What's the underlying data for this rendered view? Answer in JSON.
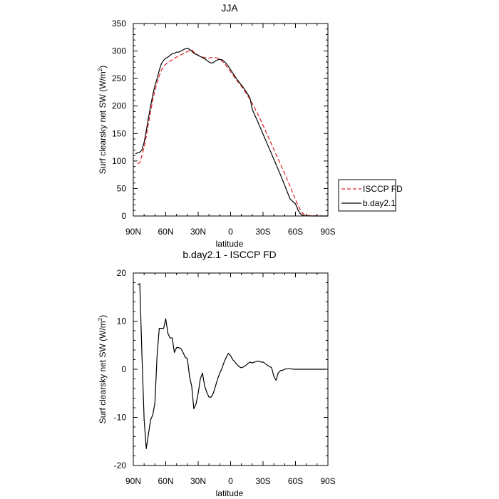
{
  "chart_data": [
    {
      "type": "line",
      "title": "JJA",
      "xlabel": "latitude",
      "ylabel_main": "Surf clearsky net SW (W/m",
      "ylabel_sup": "2",
      "ylabel_tail": ")",
      "xlim": [
        90,
        -90
      ],
      "ylim": [
        0,
        350
      ],
      "x_ticks": [
        90,
        60,
        30,
        0,
        -30,
        -60,
        -90
      ],
      "x_tick_labels": [
        "90N",
        "60N",
        "30N",
        "0",
        "30S",
        "60S",
        "90S"
      ],
      "y_ticks": [
        0,
        50,
        100,
        150,
        200,
        250,
        300,
        350
      ],
      "y_tick_labels": [
        "0",
        "50",
        "100",
        "150",
        "200",
        "250",
        "300",
        "350"
      ],
      "series": [
        {
          "name": "ISCCP FD",
          "color": "#e02020",
          "dash": "dashed",
          "x": [
            86,
            84,
            82,
            80,
            78,
            76,
            74,
            72,
            70,
            68,
            66,
            64,
            62,
            60,
            58,
            56,
            54,
            52,
            50,
            48,
            46,
            44,
            42,
            40,
            38,
            36,
            34,
            32,
            30,
            28,
            26,
            24,
            22,
            20,
            18,
            16,
            14,
            12,
            10,
            8,
            6,
            4,
            2,
            0,
            -2,
            -4,
            -6,
            -8,
            -10,
            -12,
            -14,
            -16,
            -18,
            -20,
            -25,
            -30,
            -35,
            -40,
            -45,
            -50,
            -55,
            -60,
            -62,
            -64,
            -66,
            -68,
            -70,
            -75,
            -80,
            -85,
            -90
          ],
          "y": [
            95,
            97,
            110,
            125,
            145,
            168,
            190,
            210,
            228,
            242,
            255,
            265,
            272,
            276,
            279,
            282,
            284,
            287,
            289,
            291,
            293,
            295,
            297,
            299,
            301,
            302,
            298,
            295,
            292,
            290,
            289,
            288,
            287,
            287,
            288,
            288,
            288,
            287,
            285,
            282,
            278,
            273,
            268,
            262,
            257,
            251,
            246,
            241,
            236,
            230,
            224,
            218,
            212,
            205,
            186,
            165,
            143,
            121,
            99,
            77,
            54,
            30,
            21,
            13,
            6,
            3,
            1,
            0.5,
            0.2,
            0,
            0
          ]
        },
        {
          "name": "b.day2.1",
          "color": "#000000",
          "dash": "solid",
          "x": [
            88,
            86,
            84,
            82,
            80,
            78,
            76,
            74,
            72,
            70,
            68,
            66,
            64,
            62,
            60,
            58,
            56,
            54,
            52,
            50,
            48,
            46,
            44,
            42,
            40,
            38,
            36,
            34,
            32,
            30,
            28,
            26,
            24,
            22,
            20,
            18,
            16,
            14,
            12,
            10,
            8,
            6,
            4,
            2,
            0,
            -2,
            -4,
            -6,
            -8,
            -10,
            -12,
            -14,
            -16,
            -18,
            -20,
            -25,
            -30,
            -35,
            -40,
            -45,
            -50,
            -55,
            -60,
            -62,
            -64,
            -66,
            -68,
            -70,
            -75,
            -80,
            -85,
            -90
          ],
          "y": [
            113,
            115,
            116,
            120,
            134,
            155,
            178,
            200,
            220,
            237,
            250,
            265,
            277,
            283,
            287,
            289,
            292,
            295,
            296,
            298,
            298,
            300,
            302,
            304,
            305,
            303,
            300,
            296,
            294,
            292,
            290,
            288,
            286,
            283,
            280,
            278,
            279,
            282,
            284,
            285,
            284,
            281,
            277,
            272,
            266,
            260,
            254,
            248,
            243,
            238,
            233,
            227,
            221,
            214,
            194,
            172,
            149,
            126,
            103,
            80,
            56,
            31,
            22,
            13,
            5,
            2,
            0.5,
            0.2,
            0,
            0,
            0,
            0
          ]
        }
      ]
    },
    {
      "type": "line",
      "title": "b.day2.1 - ISCCP FD",
      "xlabel": "latitude",
      "ylabel_main": "Surf clearsky net SW (W/m",
      "ylabel_sup": "2",
      "ylabel_tail": ")",
      "xlim": [
        90,
        -90
      ],
      "ylim": [
        -20,
        20
      ],
      "x_ticks": [
        90,
        60,
        30,
        0,
        -30,
        -60,
        -90
      ],
      "x_tick_labels": [
        "90N",
        "60N",
        "30N",
        "0",
        "30S",
        "60S",
        "90S"
      ],
      "y_ticks": [
        -20,
        -10,
        0,
        10,
        20
      ],
      "y_tick_labels": [
        "-20",
        "-10",
        "0",
        "10",
        "20"
      ],
      "series": [
        {
          "name": "b.day2.1 - ISCCP FD",
          "color": "#000000",
          "dash": "solid",
          "x": [
            86,
            84,
            82,
            80,
            78,
            76,
            74,
            72,
            70,
            68,
            66,
            64,
            62,
            60,
            58,
            56,
            54,
            52,
            50,
            48,
            46,
            44,
            42,
            40,
            38,
            36,
            34,
            32,
            30,
            28,
            26,
            24,
            22,
            20,
            18,
            16,
            14,
            12,
            10,
            8,
            6,
            4,
            2,
            0,
            -2,
            -4,
            -6,
            -8,
            -10,
            -12,
            -14,
            -16,
            -18,
            -20,
            -22,
            -24,
            -26,
            -28,
            -30,
            -32,
            -34,
            -36,
            -38,
            -40,
            -42,
            -44,
            -46,
            -48,
            -50,
            -52,
            -54,
            -56,
            -58,
            -60,
            -62,
            -64,
            -66,
            -68,
            -70,
            -72,
            -74,
            -76,
            -78,
            -80,
            -82,
            -84,
            -86,
            -88
          ],
          "y": [
            17.5,
            17.8,
            3,
            -10.5,
            -16.5,
            -13.5,
            -10.5,
            -9.5,
            -7,
            3,
            8.5,
            8.5,
            8.5,
            10.5,
            7.5,
            6.5,
            6.5,
            3.5,
            4.5,
            4.5,
            4.3,
            3.5,
            2.5,
            2.2,
            -1.5,
            -3.5,
            -8.2,
            -7.2,
            -5,
            -2,
            -0.8,
            -3.5,
            -4.8,
            -5.8,
            -5.8,
            -5,
            -3.5,
            -2,
            -0.8,
            0.2,
            1.5,
            2.5,
            3.3,
            2.8,
            2,
            1.5,
            1,
            0.5,
            0.3,
            0.5,
            0.8,
            1.2,
            1.5,
            1.3,
            1.5,
            1.6,
            1.7,
            1.5,
            1.5,
            1.2,
            0.8,
            0.6,
            0.3,
            -1.5,
            -2.3,
            -0.8,
            -0.3,
            -0.2,
            0,
            0.1,
            0.1,
            0.1,
            0,
            0,
            0,
            0,
            0,
            0,
            0,
            0,
            0,
            0,
            0,
            0,
            0,
            0,
            0,
            0
          ]
        }
      ]
    }
  ],
  "legend": {
    "entries": [
      {
        "label": "ISCCP FD",
        "color": "#e02020",
        "dash": "dashed"
      },
      {
        "label": "b.day2.1",
        "color": "#000000",
        "dash": "solid"
      }
    ]
  }
}
